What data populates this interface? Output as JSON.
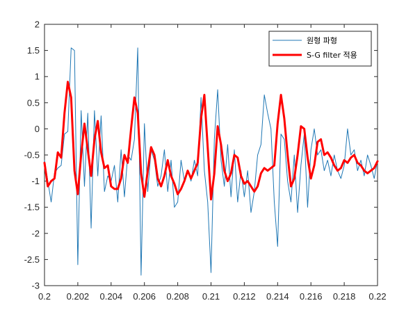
{
  "chart_data": {
    "type": "line",
    "title": "",
    "xlabel": "",
    "ylabel": "",
    "xlim": [
      0.2,
      0.22
    ],
    "ylim": [
      -3,
      2
    ],
    "grid": false,
    "legend_position": "top-right",
    "x_tick_labels": [
      "0.2",
      "0.202",
      "0.204",
      "0.206",
      "0.208",
      "0.21",
      "0.212",
      "0.214",
      "0.216",
      "0.218",
      "0.22"
    ],
    "y_tick_labels": [
      "-3",
      "-2.5",
      "-2",
      "-1.5",
      "-1",
      "-0.5",
      "0",
      "0.5",
      "1",
      "1.5",
      "2"
    ],
    "series": [
      {
        "name": "원형 파형",
        "color": "#1f77b4",
        "x": [
          0.2,
          0.2002,
          0.2004,
          0.2006,
          0.2008,
          0.201,
          0.2012,
          0.2014,
          0.2016,
          0.2018,
          0.202,
          0.2022,
          0.2024,
          0.2026,
          0.2028,
          0.203,
          0.2032,
          0.2034,
          0.2036,
          0.2038,
          0.204,
          0.2042,
          0.2044,
          0.2046,
          0.2048,
          0.205,
          0.2052,
          0.2054,
          0.2056,
          0.2058,
          0.206,
          0.2062,
          0.2064,
          0.2066,
          0.2068,
          0.207,
          0.2072,
          0.2074,
          0.2076,
          0.2078,
          0.208,
          0.2082,
          0.2084,
          0.2086,
          0.2088,
          0.209,
          0.2092,
          0.2094,
          0.2096,
          0.2098,
          0.21,
          0.2102,
          0.2104,
          0.2106,
          0.2108,
          0.211,
          0.2112,
          0.2114,
          0.2116,
          0.2118,
          0.212,
          0.2122,
          0.2124,
          0.2126,
          0.2128,
          0.213,
          0.2132,
          0.2134,
          0.2136,
          0.2138,
          0.214,
          0.2142,
          0.2144,
          0.2146,
          0.2148,
          0.215,
          0.2152,
          0.2154,
          0.2156,
          0.2158,
          0.216,
          0.2162,
          0.2164,
          0.2166,
          0.2168,
          0.217,
          0.2172,
          0.2174,
          0.2176,
          0.2178,
          0.218,
          0.2182,
          0.2184,
          0.2186,
          0.2188,
          0.219,
          0.2192,
          0.2194,
          0.2196,
          0.2198,
          0.22
        ],
        "y": [
          -0.6,
          -1.0,
          -1.4,
          -0.85,
          -0.75,
          -0.7,
          -0.1,
          -0.05,
          1.55,
          1.5,
          -2.6,
          0.35,
          -1.1,
          0.3,
          -1.9,
          0.35,
          -0.9,
          0.25,
          -1.2,
          -0.9,
          -1.0,
          -0.7,
          -1.4,
          -0.4,
          -1.3,
          -0.5,
          -0.6,
          -0.2,
          1.55,
          -2.8,
          0.1,
          -1.2,
          -0.4,
          -0.6,
          -1.1,
          -0.9,
          -0.4,
          -1.2,
          -0.6,
          -1.5,
          -1.4,
          -0.6,
          -1.0,
          -0.8,
          -1.0,
          -0.6,
          -0.9,
          0.6,
          -0.8,
          -1.4,
          -2.75,
          -0.2,
          0.75,
          -0.6,
          -1.1,
          -0.3,
          -1.3,
          -0.4,
          -1.4,
          -0.8,
          -1.3,
          -0.8,
          -1.6,
          -1.2,
          -0.5,
          -0.3,
          0.65,
          0.3,
          0.0,
          -1.4,
          -2.25,
          -0.1,
          -0.2,
          -1.0,
          -1.4,
          -0.5,
          -1.6,
          -0.7,
          -0.1,
          -1.5,
          -0.4,
          0.0,
          -0.5,
          -0.4,
          -0.8,
          -0.6,
          -0.9,
          -0.5,
          -0.8,
          -0.95,
          -0.7,
          0.0,
          -0.5,
          -0.4,
          -0.8,
          -0.6,
          -0.9,
          -0.5,
          -0.7,
          -0.95,
          -0.6
        ]
      },
      {
        "name": "S-G filter 적용",
        "color": "#ff0000",
        "x": [
          0.2,
          0.2002,
          0.2004,
          0.2006,
          0.2008,
          0.201,
          0.2012,
          0.2014,
          0.2016,
          0.2018,
          0.202,
          0.2022,
          0.2024,
          0.2026,
          0.2028,
          0.203,
          0.2032,
          0.2034,
          0.2036,
          0.2038,
          0.204,
          0.2042,
          0.2044,
          0.2046,
          0.2048,
          0.205,
          0.2052,
          0.2054,
          0.2056,
          0.2058,
          0.206,
          0.2062,
          0.2064,
          0.2066,
          0.2068,
          0.207,
          0.2072,
          0.2074,
          0.2076,
          0.2078,
          0.208,
          0.2082,
          0.2084,
          0.2086,
          0.2088,
          0.209,
          0.2092,
          0.2094,
          0.2096,
          0.2098,
          0.21,
          0.2102,
          0.2104,
          0.2106,
          0.2108,
          0.211,
          0.2112,
          0.2114,
          0.2116,
          0.2118,
          0.212,
          0.2122,
          0.2124,
          0.2126,
          0.2128,
          0.213,
          0.2132,
          0.2134,
          0.2136,
          0.2138,
          0.214,
          0.2142,
          0.2144,
          0.2146,
          0.2148,
          0.215,
          0.2152,
          0.2154,
          0.2156,
          0.2158,
          0.216,
          0.2162,
          0.2164,
          0.2166,
          0.2168,
          0.217,
          0.2172,
          0.2174,
          0.2176,
          0.2178,
          0.218,
          0.2182,
          0.2184,
          0.2186,
          0.2188,
          0.219,
          0.2192,
          0.2194,
          0.2196,
          0.2198,
          0.22
        ],
        "y": [
          -0.65,
          -1.1,
          -1.0,
          -0.95,
          -0.45,
          -0.55,
          0.3,
          0.9,
          0.6,
          -0.8,
          -1.25,
          -0.5,
          0.1,
          -0.4,
          -0.9,
          -0.2,
          0.15,
          -0.45,
          -0.75,
          -0.7,
          -1.1,
          -1.15,
          -1.15,
          -0.95,
          -0.5,
          -0.65,
          0.0,
          0.6,
          0.3,
          -0.85,
          -1.3,
          -0.8,
          -0.35,
          -0.5,
          -0.95,
          -1.1,
          -0.9,
          -0.6,
          -0.9,
          -1.05,
          -1.25,
          -1.15,
          -1.0,
          -0.8,
          -0.95,
          -0.8,
          -0.65,
          0.2,
          0.65,
          -0.35,
          -1.35,
          -0.85,
          0.05,
          -0.3,
          -0.8,
          -1.0,
          -0.85,
          -0.5,
          -0.55,
          -0.9,
          -1.05,
          -1.0,
          -1.1,
          -1.2,
          -1.1,
          -0.85,
          -0.75,
          -0.8,
          -0.75,
          -0.7,
          0.1,
          0.65,
          0.2,
          -0.5,
          -1.1,
          -0.95,
          -0.5,
          0.05,
          0.0,
          -0.55,
          -0.95,
          -0.7,
          -0.25,
          -0.2,
          -0.5,
          -0.45,
          -0.55,
          -0.7,
          -0.8,
          -0.75,
          -0.6,
          -0.65,
          -0.55,
          -0.5,
          -0.65,
          -0.7,
          -0.8,
          -0.85,
          -0.8,
          -0.75,
          -0.62
        ]
      }
    ]
  }
}
